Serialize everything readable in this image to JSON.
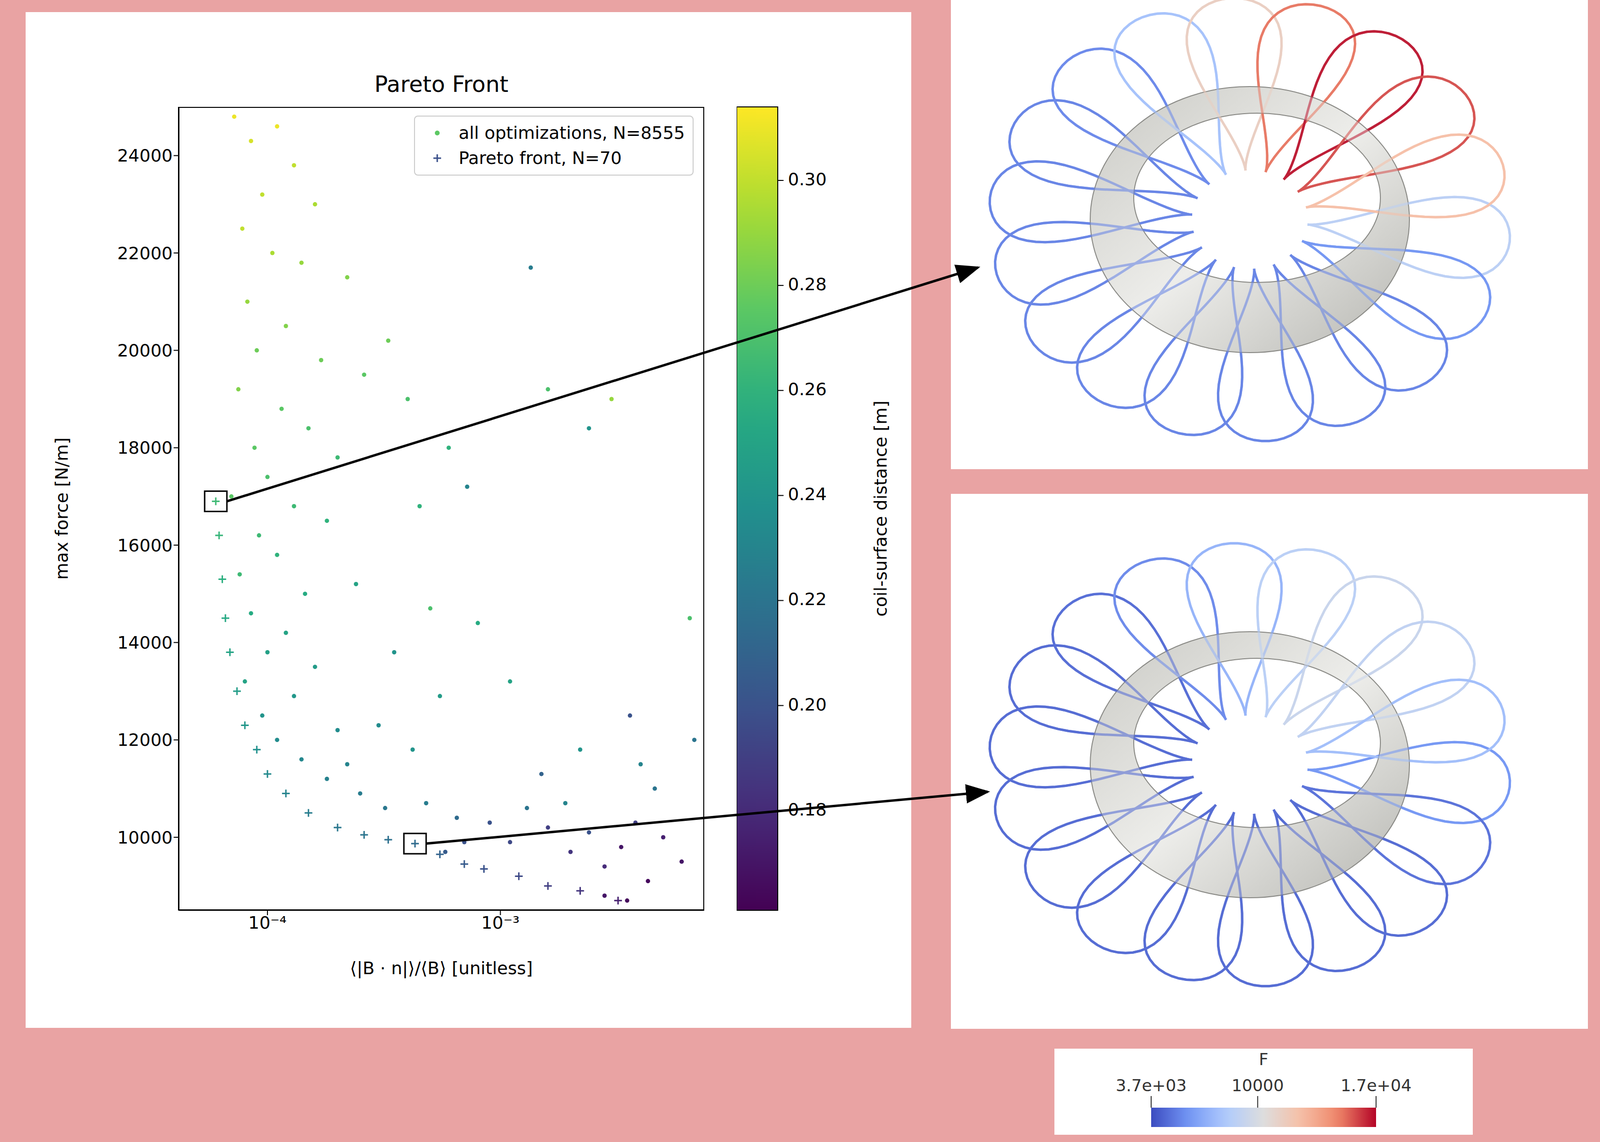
{
  "chart_data": {
    "type": "scatter",
    "title": "Pareto Front",
    "x_label": "⟨|B · n|⟩/⟨B⟩ [unitless]",
    "y_label": "max force [N/m]",
    "log": "x",
    "xlim": [
      4.15e-05,
      0.0075
    ],
    "xticks": [
      {
        "value": 0.0001,
        "label": "10⁻⁴"
      },
      {
        "value": 0.001,
        "label": "10⁻³"
      }
    ],
    "ylim": [
      8500,
      25000
    ],
    "yticks": [
      10000,
      12000,
      14000,
      16000,
      18000,
      20000,
      22000,
      24000
    ],
    "grid": false,
    "legend": "upper right",
    "series": [
      {
        "name": "all optimizations, N=8555",
        "marker": "o",
        "color": "#5cc863",
        "x": [
          7.2e-05,
          8.5e-05,
          0.00011,
          0.00013,
          9.5e-05,
          0.00016,
          7.8e-05,
          0.000105,
          0.00014,
          0.00022,
          8.2e-05,
          0.00012,
          9e-05,
          0.00017,
          0.00026,
          7.5e-05,
          0.000115,
          0.00015,
          8.8e-05,
          0.0002,
          0.0001,
          7e-05,
          0.00013,
          0.00018,
          9.2e-05,
          0.00011,
          7.6e-05,
          0.000145,
          0.00024,
          8.5e-05,
          0.00012,
          0.0001,
          0.00016,
          8e-05,
          0.00013,
          9.5e-05,
          0.0002,
          0.00011,
          0.00014,
          0.00018,
          0.00025,
          0.00032,
          0.00022,
          0.0003,
          0.00035,
          0.00045,
          0.0004,
          0.00033,
          0.0006,
          0.00072,
          0.0008,
          0.0005,
          0.0011,
          0.00135,
          0.0024,
          0.003,
          0.0016,
          0.00055,
          0.00042,
          0.00048,
          0.00065,
          0.0009,
          0.0011,
          0.0013,
          0.0016,
          0.002,
          0.0024,
          0.0028,
          0.0033,
          0.0038,
          0.0043,
          0.005,
          0.006,
          0.0068,
          0.0015,
          0.0022,
          0.0036,
          0.0046,
          0.0065,
          0.0028,
          0.0035,
          0.0007,
          0.00058,
          0.0019,
          0.004
        ],
        "values": [
          24800,
          24300,
          24600,
          23800,
          23200,
          23000,
          22500,
          22000,
          21800,
          21500,
          21000,
          20500,
          20000,
          19800,
          19500,
          19200,
          18800,
          18400,
          18000,
          17800,
          17400,
          17000,
          16800,
          16500,
          16200,
          15800,
          15400,
          15000,
          15200,
          14600,
          14200,
          13800,
          13500,
          13200,
          12900,
          12500,
          12200,
          12000,
          11600,
          11200,
          10900,
          10600,
          11500,
          12300,
          13800,
          16800,
          19000,
          20200,
          18000,
          17200,
          14400,
          14700,
          13200,
          21700,
          18400,
          19000,
          19200,
          12900,
          11800,
          10700,
          10400,
          10300,
          9900,
          10600,
          10200,
          9700,
          10100,
          9400,
          9800,
          10300,
          9100,
          10000,
          9500,
          12000,
          11300,
          11800,
          12500,
          11000,
          14500,
          8800,
          8700,
          9900,
          9700,
          10700,
          11500
        ],
        "coil_surface_distance": [
          0.31,
          0.305,
          0.31,
          0.3,
          0.3,
          0.295,
          0.3,
          0.295,
          0.29,
          0.285,
          0.29,
          0.285,
          0.28,
          0.28,
          0.275,
          0.285,
          0.275,
          0.27,
          0.275,
          0.265,
          0.27,
          0.275,
          0.265,
          0.26,
          0.265,
          0.26,
          0.265,
          0.255,
          0.25,
          0.255,
          0.25,
          0.248,
          0.245,
          0.25,
          0.242,
          0.24,
          0.235,
          0.235,
          0.232,
          0.228,
          0.225,
          0.222,
          0.23,
          0.235,
          0.24,
          0.26,
          0.27,
          0.28,
          0.26,
          0.23,
          0.255,
          0.27,
          0.25,
          0.225,
          0.24,
          0.29,
          0.27,
          0.245,
          0.24,
          0.225,
          0.215,
          0.2,
          0.195,
          0.22,
          0.19,
          0.185,
          0.2,
          0.18,
          0.17,
          0.19,
          0.165,
          0.175,
          0.17,
          0.22,
          0.21,
          0.24,
          0.2,
          0.22,
          0.27,
          0.17,
          0.165,
          0.2,
          0.205,
          0.23,
          0.23
        ]
      },
      {
        "name": "Pareto front, N=70",
        "marker": "+",
        "color": "#3b518b",
        "x": [
          6e-05,
          6.2e-05,
          6.4e-05,
          6.6e-05,
          6.9e-05,
          7.4e-05,
          8e-05,
          9e-05,
          0.0001,
          0.00012,
          0.00015,
          0.0002,
          0.00026,
          0.00033,
          0.00043,
          0.00055,
          0.0007,
          0.00085,
          0.0012,
          0.0016,
          0.0022,
          0.0032
        ],
        "values": [
          16900,
          16200,
          15300,
          14500,
          13800,
          13000,
          12300,
          11800,
          11300,
          10900,
          10500,
          10200,
          10050,
          9950,
          9870,
          9650,
          9450,
          9350,
          9200,
          9000,
          8900,
          8700
        ],
        "coil_surface_distance": [
          0.265,
          0.262,
          0.258,
          0.254,
          0.25,
          0.246,
          0.242,
          0.238,
          0.234,
          0.23,
          0.226,
          0.222,
          0.22,
          0.218,
          0.215,
          0.21,
          0.205,
          0.2,
          0.195,
          0.19,
          0.185,
          0.175
        ]
      }
    ],
    "colorbar": {
      "label": "coil-surface distance [m]",
      "range": [
        0.161,
        0.314
      ],
      "ticks": [
        0.18,
        {
          "value": 0.2,
          "label": "0.20"
        },
        0.22,
        0.24,
        0.26,
        0.28,
        {
          "value": 0.3,
          "label": "0.30"
        }
      ]
    },
    "force_colorbar": {
      "label": "F",
      "range": [
        3700,
        17000
      ],
      "ticks": [
        {
          "value": 3700,
          "label": "3.7e+03"
        },
        10000,
        {
          "value": 17000,
          "label": "1.7e+04"
        }
      ]
    }
  }
}
